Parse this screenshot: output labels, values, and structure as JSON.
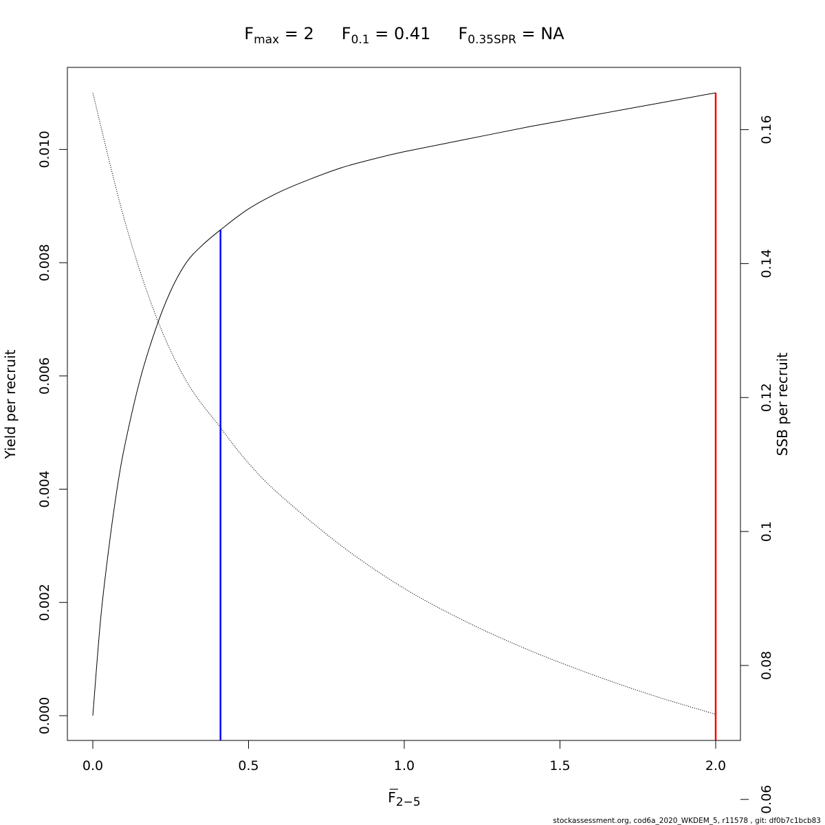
{
  "title": {
    "fmax": {
      "symbol": "F",
      "sub": "max",
      "value": " = 2"
    },
    "f01": {
      "symbol": "F",
      "sub": "0.1",
      "value": " = 0.41"
    },
    "fspr": {
      "symbol": "F",
      "sub": "0.35SPR",
      "value": " = NA"
    }
  },
  "footer": "stockassessment.org, cod6a_2020_WKDEM_5, r11578 , git: df0b7c1bcb83",
  "chart_data": {
    "type": "line",
    "xlabel": {
      "symbol": "F",
      "sub": "2−5"
    },
    "ylabel": "Yield per recruit",
    "y2label": "SSB per recruit",
    "xlim": [
      0,
      2
    ],
    "ylim": [
      0,
      0.011
    ],
    "y2lim": [
      0.0725,
      0.1655
    ],
    "x_ticks": [
      "0.0",
      "0.5",
      "1.0",
      "1.5",
      "2.0"
    ],
    "y_ticks": [
      "0.000",
      "0.002",
      "0.004",
      "0.006",
      "0.008",
      "0.010"
    ],
    "y2_ticks": [
      "0.06",
      "0.08",
      "0.1",
      "0.12",
      "0.14",
      "0.16"
    ],
    "series": [
      {
        "axis": "left",
        "style": "solid",
        "x": [
          0,
          0.025,
          0.05,
          0.075,
          0.1,
          0.15,
          0.2,
          0.25,
          0.3,
          0.35,
          0.41,
          0.5,
          0.6,
          0.7,
          0.8,
          0.9,
          1.0,
          1.2,
          1.4,
          1.6,
          1.8,
          2.0
        ],
        "y": [
          0,
          0.0017,
          0.0029,
          0.0039,
          0.0047,
          0.0059,
          0.0068,
          0.0075,
          0.008,
          0.0083,
          0.00858,
          0.00895,
          0.00925,
          0.00948,
          0.00968,
          0.00983,
          0.00996,
          0.01018,
          0.0104,
          0.0106,
          0.0108,
          0.011
        ]
      },
      {
        "axis": "right",
        "style": "dotted",
        "x": [
          0,
          0.1,
          0.2,
          0.3,
          0.41,
          0.5,
          0.6,
          0.8,
          1.0,
          1.2,
          1.4,
          1.6,
          1.8,
          2.0
        ],
        "y": [
          0.1655,
          0.1468,
          0.1325,
          0.1225,
          0.1155,
          0.1102,
          0.1055,
          0.0978,
          0.0915,
          0.0865,
          0.0823,
          0.0787,
          0.0755,
          0.0727
        ]
      }
    ],
    "ref_lines": [
      {
        "label": "F0.1",
        "x": 0.41,
        "y": 0.00858,
        "color": "#0000ff"
      },
      {
        "label": "Fmax",
        "x": 2.0,
        "y": 0.011,
        "color": "#ff0000"
      }
    ]
  }
}
